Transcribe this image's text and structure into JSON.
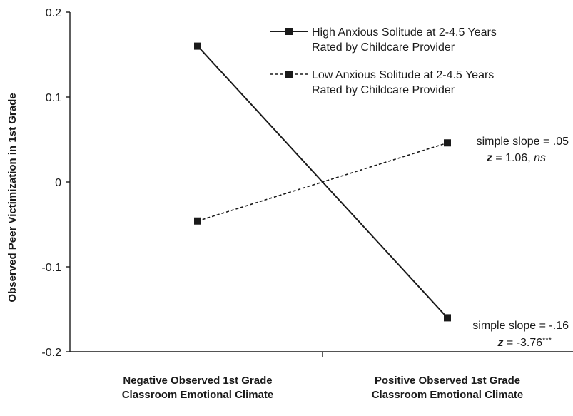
{
  "chart_data": {
    "type": "line",
    "categories": [
      "Negative Observed 1st Grade Classroom Emotional Climate",
      "Positive Observed 1st Grade Classroom Emotional Climate"
    ],
    "category_lines": [
      [
        "Negative Observed 1st Grade",
        "Classroom Emotional Climate"
      ],
      [
        "Positive Observed 1st Grade",
        "Classroom Emotional Climate"
      ]
    ],
    "ylabel": "Observed Peer Victimization in 1st Grade",
    "ylim": [
      -0.2,
      0.2
    ],
    "yticks": [
      0.2,
      0.1,
      0,
      -0.1,
      -0.2
    ],
    "ytick_labels": [
      "0.2",
      "0.1",
      "0",
      "-0.1",
      "-0.2"
    ],
    "grid": false,
    "legend_position": "top-right",
    "series": [
      {
        "name": "High Anxious Solitude at 2-4.5 Years Rated by Childcare Provider",
        "legend_lines": [
          "High Anxious Solitude at 2-4.5 Years",
          "Rated by Childcare Provider"
        ],
        "style": "solid",
        "color": "#1a1a1a",
        "values": [
          0.16,
          -0.16
        ]
      },
      {
        "name": "Low Anxious Solitude at 2-4.5 Years Rated by Childcare Provider",
        "legend_lines": [
          "Low Anxious Solitude at 2-4.5 Years",
          "Rated by Childcare Provider"
        ],
        "style": "dashed",
        "color": "#1a1a1a",
        "values": [
          -0.046,
          0.046
        ]
      }
    ],
    "annotations": [
      {
        "series": 1,
        "line1": "simple slope = .05",
        "line2_prefix": "z",
        "line2_mid": " = 1.06, ",
        "line2_suffix": "ns"
      },
      {
        "series": 0,
        "line1": "simple slope = -.16",
        "line2_prefix": "z",
        "line2_mid": " = -3.76",
        "line2_suffix": "***"
      }
    ]
  }
}
